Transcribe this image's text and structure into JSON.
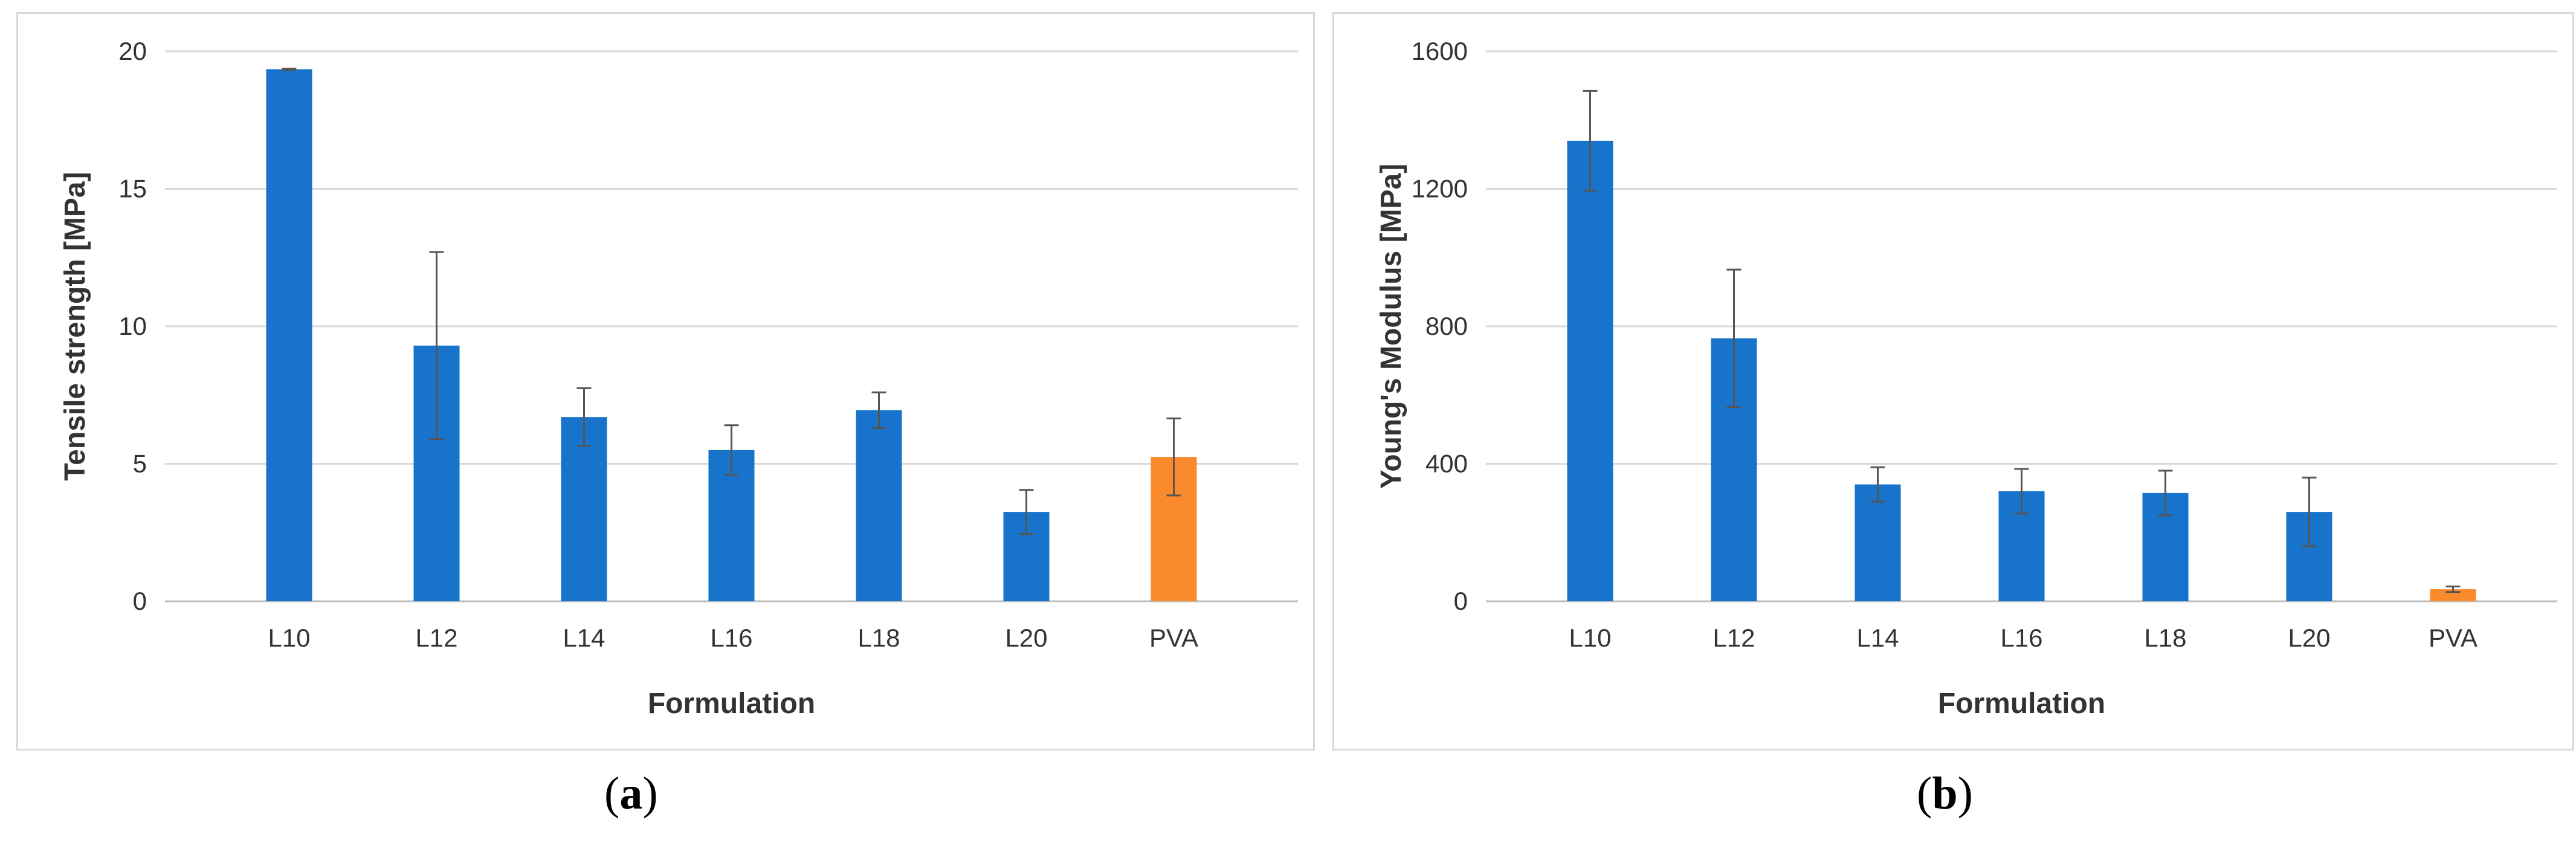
{
  "colors": {
    "blue": "#1773CB",
    "orange": "#FB8A2C",
    "grid": "#D9D9D9",
    "error_bar": "#555555"
  },
  "captions": {
    "a_letter": "a",
    "b_letter": "b",
    "open": "(",
    "close": ")"
  },
  "chart_data": [
    {
      "type": "bar",
      "panel": "a",
      "xlabel": "Formulation",
      "ylabel": "Tensile strength [MPa]",
      "ylim": [
        0,
        20
      ],
      "yticks": [
        0,
        5,
        10,
        15,
        20
      ],
      "grid": true,
      "categories": [
        "L10",
        "L12",
        "L14",
        "L16",
        "L18",
        "L20",
        "PVA"
      ],
      "values": [
        19.35,
        9.3,
        6.7,
        5.5,
        6.95,
        3.25,
        5.25
      ],
      "errors": [
        0.02,
        3.4,
        1.05,
        0.9,
        0.65,
        0.8,
        1.4
      ],
      "bar_colors": [
        "#1773CB",
        "#1773CB",
        "#1773CB",
        "#1773CB",
        "#1773CB",
        "#1773CB",
        "#FB8A2C"
      ]
    },
    {
      "type": "bar",
      "panel": "b",
      "xlabel": "Formulation",
      "ylabel": "Young's Modulus [MPa]",
      "ylim": [
        0,
        1600
      ],
      "yticks": [
        0,
        400,
        800,
        1200,
        1600
      ],
      "grid": true,
      "categories": [
        "L10",
        "L12",
        "L14",
        "L16",
        "L18",
        "L20",
        "PVA"
      ],
      "values": [
        1340,
        765,
        340,
        320,
        315,
        260,
        35
      ],
      "errors": [
        145,
        200,
        50,
        65,
        65,
        100,
        8
      ],
      "bar_colors": [
        "#1773CB",
        "#1773CB",
        "#1773CB",
        "#1773CB",
        "#1773CB",
        "#1773CB",
        "#FB8A2C"
      ]
    }
  ]
}
